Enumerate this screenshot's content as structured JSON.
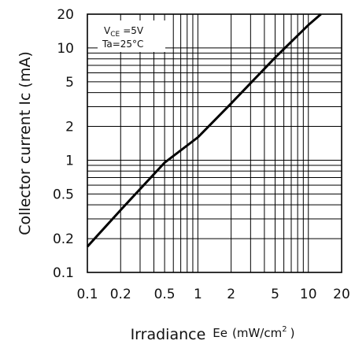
{
  "chart_data": {
    "type": "line",
    "xlabel": "Irradiance",
    "xlabel_symbol": "Ee",
    "xlabel_unit_open": "(mW/cm",
    "xlabel_unit_sup": "2",
    "xlabel_unit_close": ")",
    "ylabel": "Collector current Ic (mA)",
    "x_scale": "log",
    "y_scale": "log",
    "xlim": [
      0.1,
      20
    ],
    "ylim": [
      0.1,
      20
    ],
    "x_ticks": [
      {
        "value": 0.1,
        "label": "0.1"
      },
      {
        "value": 0.2,
        "label": "0.2"
      },
      {
        "value": 0.5,
        "label": "0.5"
      },
      {
        "value": 1,
        "label": "1"
      },
      {
        "value": 2,
        "label": "2"
      },
      {
        "value": 5,
        "label": "5"
      },
      {
        "value": 10,
        "label": "10"
      },
      {
        "value": 20,
        "label": "20"
      }
    ],
    "y_ticks": [
      {
        "value": 0.1,
        "label": "0.1"
      },
      {
        "value": 0.2,
        "label": "0.2"
      },
      {
        "value": 0.5,
        "label": "0.5"
      },
      {
        "value": 1,
        "label": "1"
      },
      {
        "value": 2,
        "label": "2"
      },
      {
        "value": 5,
        "label": "5"
      },
      {
        "value": 10,
        "label": "10"
      },
      {
        "value": 20,
        "label": "20"
      }
    ],
    "grid": true,
    "conditions": {
      "vce_symbol": "V",
      "vce_sub": "CE",
      "vce_value": "=5V",
      "ta": "Ta=25°C"
    },
    "series": [
      {
        "x": [
          0.1,
          0.2,
          0.5,
          1,
          2,
          5,
          10,
          13
        ],
        "y": [
          0.17,
          0.36,
          0.95,
          1.6,
          3.2,
          8.2,
          16,
          20
        ]
      }
    ],
    "colors": {
      "line": "#000000",
      "grid": "#000000",
      "background": "#ffffff"
    }
  }
}
